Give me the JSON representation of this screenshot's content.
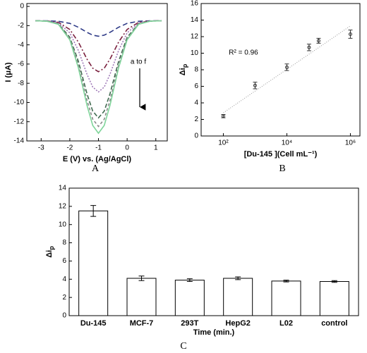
{
  "chart_data": [
    {
      "type": "line",
      "panel_label": "A",
      "xlabel": "E (V) vs. (Ag/AgCl)",
      "ylabel": "I (μA)",
      "annotation": "a to f",
      "x": [
        -3.2,
        -2.8,
        -2.4,
        -2.0,
        -1.7,
        -1.4,
        -1.2,
        -1.0,
        -0.8,
        -0.6,
        -0.3,
        0,
        0.4,
        0.8,
        1.2
      ],
      "series": [
        {
          "color": "#2e3a87",
          "dash": "7,4",
          "values": [
            -1.5,
            -1.5,
            -1.55,
            -1.77,
            -2.17,
            -2.7,
            -2.99,
            -3.1,
            -2.99,
            -2.7,
            -2.17,
            -1.77,
            -1.55,
            -1.5,
            -1.5
          ]
        },
        {
          "color": "#7a1f3d",
          "dash": "7,3,2,3",
          "values": [
            -1.5,
            -1.52,
            -1.66,
            -2.4,
            -3.72,
            -5.49,
            -6.43,
            -6.8,
            -6.43,
            -5.49,
            -3.72,
            -2.4,
            -1.66,
            -1.52,
            -1.5
          ]
        },
        {
          "color": "#a07ab8",
          "dash": "2,2",
          "values": [
            -1.5,
            -1.52,
            -1.73,
            -2.75,
            -4.6,
            -7.07,
            -8.39,
            -8.9,
            -8.39,
            -7.07,
            -4.6,
            -2.75,
            -1.73,
            -1.52,
            -1.5
          ]
        },
        {
          "color": "#3f6a4f",
          "dash": "6,3",
          "values": [
            -1.5,
            -1.53,
            -1.81,
            -3.21,
            -5.73,
            -9.11,
            -10.9,
            -11.6,
            -10.9,
            -9.11,
            -5.73,
            -3.21,
            -1.81,
            -1.53,
            -1.5
          ]
        },
        {
          "color": "#8a8a8a",
          "dash": "4,3",
          "values": [
            -1.5,
            -1.53,
            -1.84,
            -3.36,
            -6.11,
            -9.78,
            -11.74,
            -12.5,
            -11.74,
            -9.78,
            -6.11,
            -3.36,
            -1.84,
            -1.53,
            -1.5
          ]
        },
        {
          "color": "#7fd49a",
          "dash": "none",
          "values": [
            -1.5,
            -1.54,
            -1.86,
            -3.48,
            -6.4,
            -10.31,
            -12.39,
            -13.2,
            -12.39,
            -10.31,
            -6.4,
            -3.48,
            -1.86,
            -1.54,
            -1.5
          ]
        }
      ],
      "xlim": [
        -3.5,
        1.4
      ],
      "xticks": [
        -3,
        -2,
        -1,
        0,
        1
      ],
      "ylim": [
        -14,
        0.3
      ],
      "yticks": [
        -14,
        -12,
        -10,
        -8,
        -6,
        -4,
        -2,
        0
      ]
    },
    {
      "type": "scatter",
      "panel_label": "B",
      "xlabel": "[Du-145 ](Cell mL⁻¹)",
      "ylabel": "Δi",
      "ylabel_subscript": "p",
      "annotation": "R² = 0.96",
      "x": [
        100,
        1000,
        10000,
        50000,
        100000,
        1000000
      ],
      "values": [
        2.4,
        6.1,
        8.3,
        10.7,
        11.5,
        12.3
      ],
      "errors": [
        0.2,
        0.4,
        0.4,
        0.4,
        0.3,
        0.5
      ],
      "color": "#333333",
      "fit": {
        "color": "#999999",
        "x": [
          100,
          1000000
        ],
        "values": [
          2.8,
          13.3
        ]
      },
      "log_x": true,
      "xlim": [
        20,
        2000000
      ],
      "xticks": [
        {
          "value": 100,
          "label": "10²"
        },
        {
          "value": 10000,
          "label": "10⁴"
        },
        {
          "value": 1000000,
          "label": "10⁶"
        }
      ],
      "ylim": [
        0,
        16
      ],
      "yticks": [
        0,
        2,
        4,
        6,
        8,
        10,
        12,
        14,
        16
      ]
    },
    {
      "type": "bar",
      "panel_label": "C",
      "xlabel": "Time (min.)",
      "ylabel": "Δi",
      "ylabel_subscript": "p",
      "categories": [
        "Du-145",
        "MCF-7",
        "293T",
        "HepG2",
        "L02",
        "control"
      ],
      "values": [
        11.5,
        4.1,
        3.9,
        4.1,
        3.8,
        3.75
      ],
      "errors": [
        0.6,
        0.25,
        0.15,
        0.15,
        0.1,
        0.1
      ],
      "color": "#ffffff",
      "ylim": [
        0,
        14
      ],
      "yticks": [
        0,
        2,
        4,
        6,
        8,
        10,
        12,
        14
      ]
    }
  ]
}
